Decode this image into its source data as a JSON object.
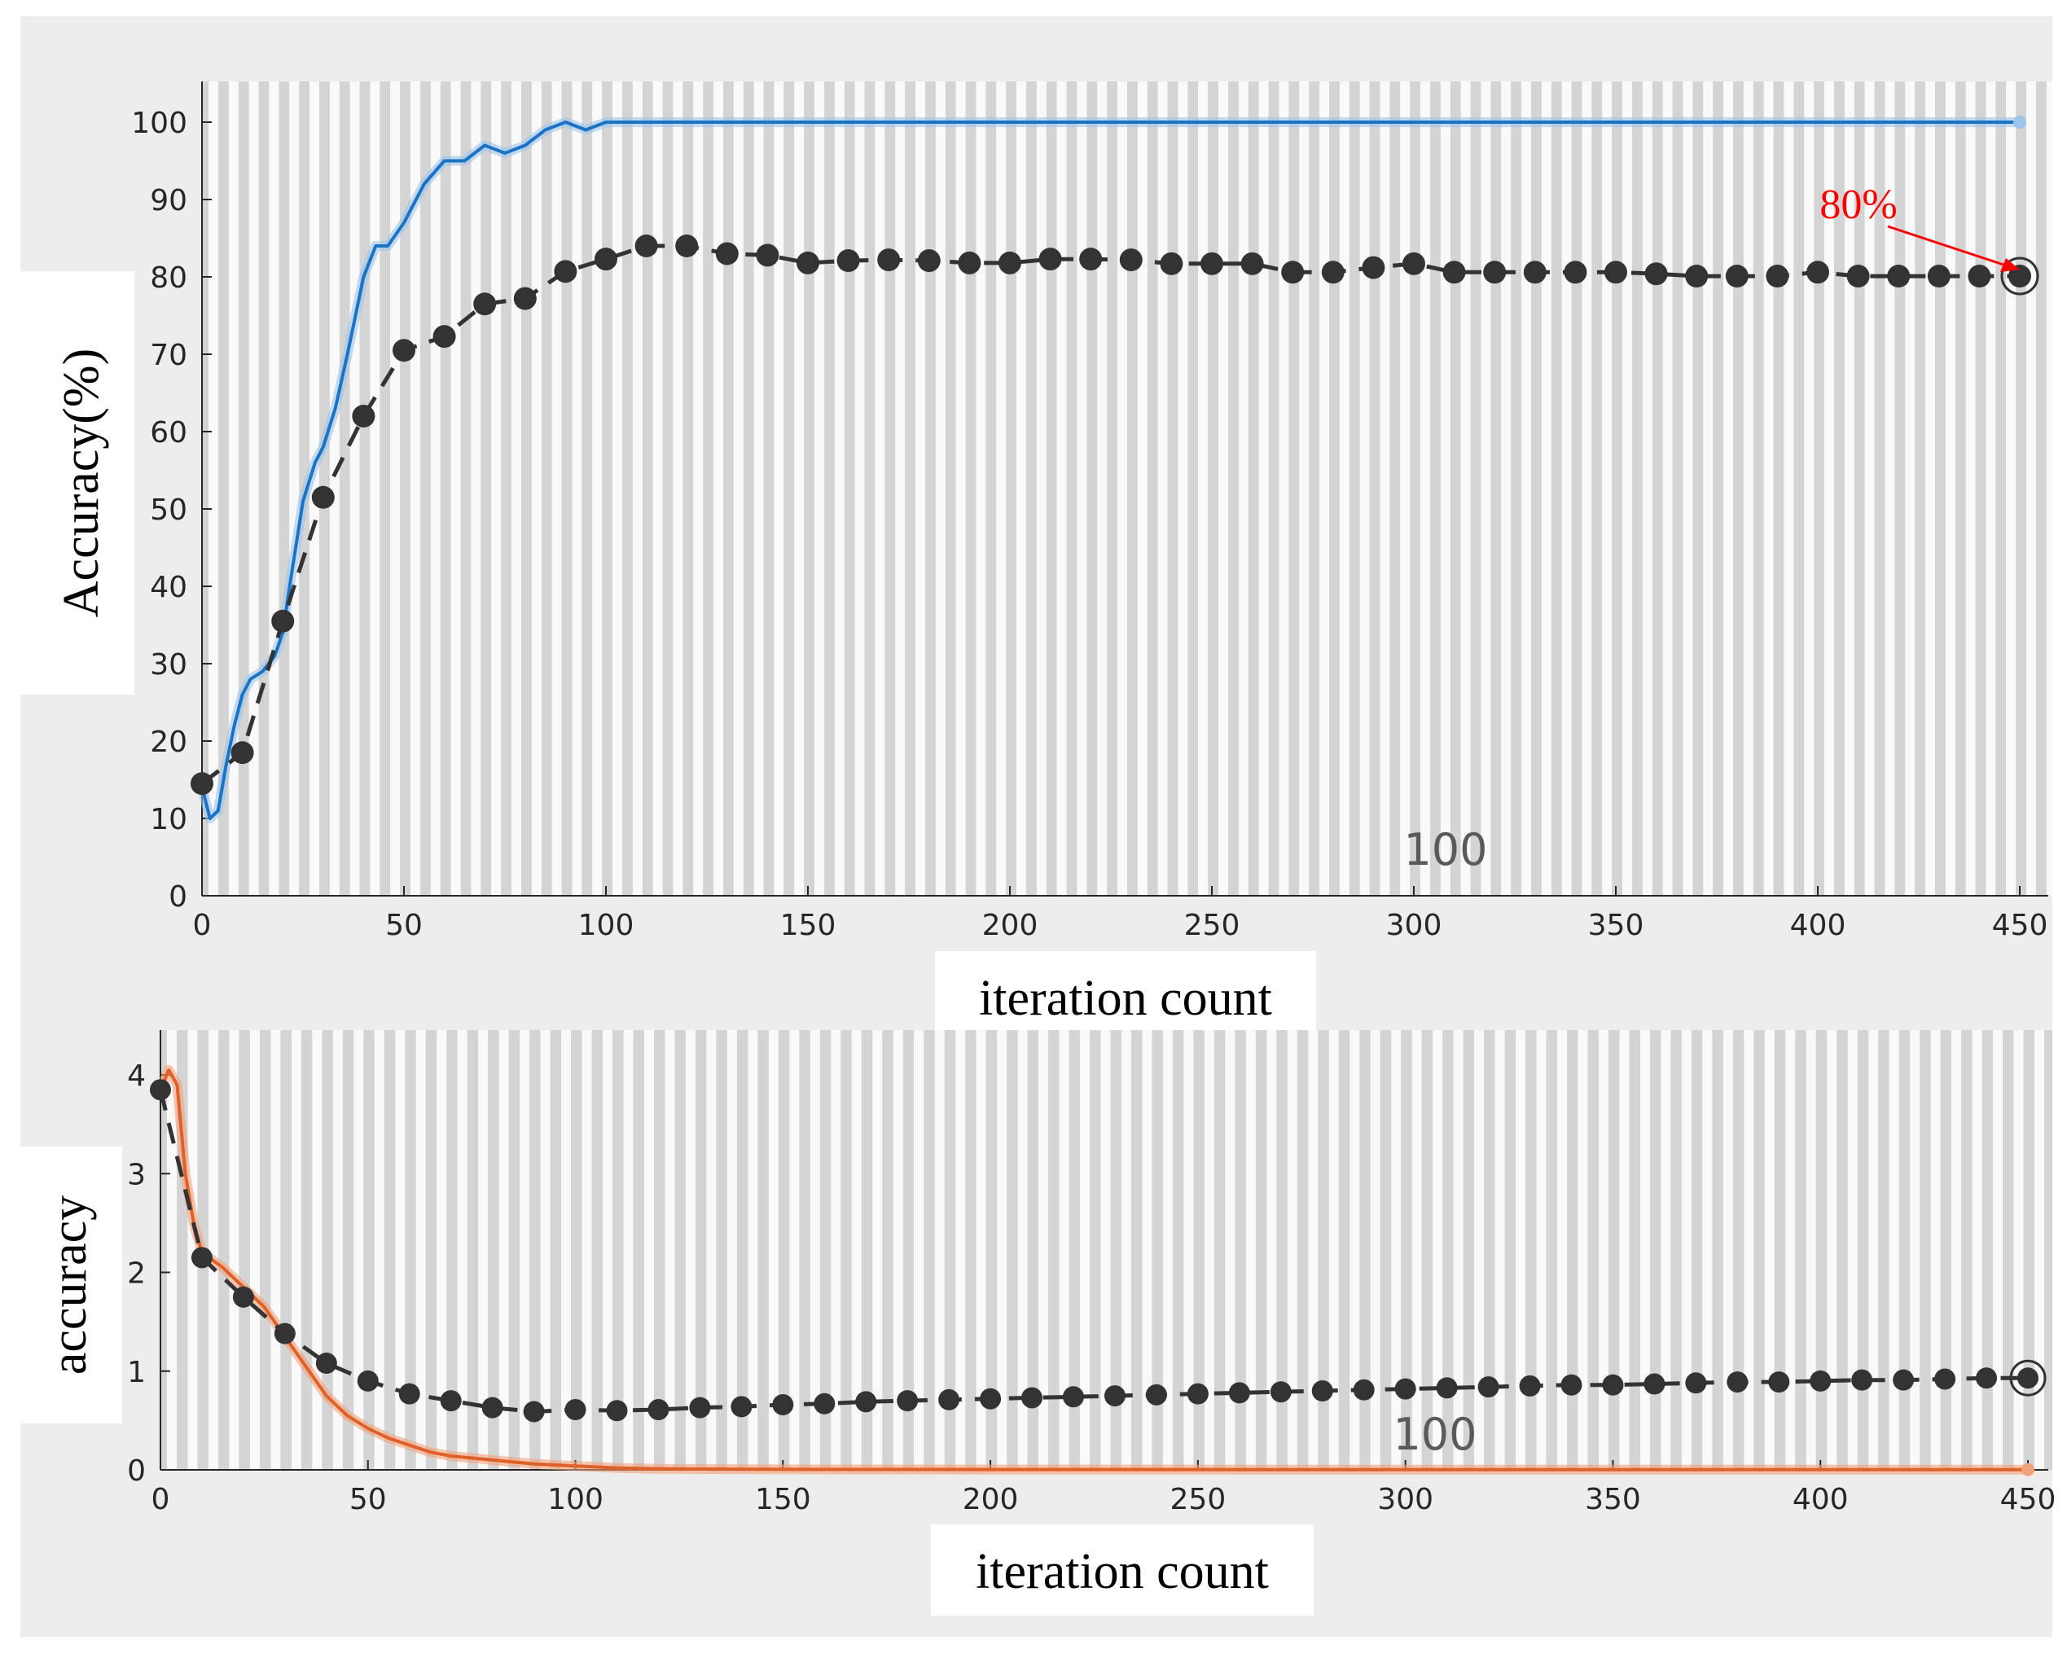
{
  "colors": {
    "background": "#ededed",
    "plot_bg": "#d4d4d4",
    "stripe": "#ffffff",
    "training_accuracy": "#1a73c4",
    "training_accuracy_raw": "#9cc5ea",
    "training_loss": "#e0602a",
    "training_loss_raw": "#f0a07a",
    "validation": "#333333",
    "annotation": "#ff0000"
  },
  "chart_data": [
    {
      "type": "line",
      "ylabel": "Accuracy(%)",
      "xlabel": "iteration count",
      "center_label": "100",
      "xlim": [
        0,
        450
      ],
      "ylim": [
        0,
        105
      ],
      "xticks": [
        0,
        50,
        100,
        150,
        200,
        250,
        300,
        350,
        400,
        450
      ],
      "yticks": [
        0,
        10,
        20,
        30,
        40,
        50,
        60,
        70,
        80,
        90,
        100
      ],
      "annotation": {
        "text": "80%",
        "x": 450,
        "y": 80
      },
      "series": [
        {
          "role": "training",
          "x": [
            0,
            2,
            4,
            6,
            8,
            10,
            12,
            15,
            18,
            20,
            22,
            25,
            28,
            30,
            33,
            36,
            40,
            43,
            46,
            50,
            55,
            60,
            65,
            70,
            75,
            80,
            85,
            90,
            95,
            100,
            105,
            110,
            130,
            200,
            300,
            400,
            450
          ],
          "y": [
            14,
            10,
            11,
            17,
            22,
            26,
            28,
            29,
            31,
            34,
            41,
            51,
            56,
            58,
            63,
            70,
            80,
            84,
            84,
            87,
            92,
            95,
            95,
            97,
            96,
            97,
            99,
            100,
            99,
            100,
            100,
            100,
            100,
            100,
            100,
            100,
            100
          ]
        },
        {
          "role": "validation",
          "x": [
            0,
            10,
            20,
            30,
            40,
            50,
            60,
            70,
            80,
            90,
            100,
            110,
            120,
            130,
            140,
            150,
            160,
            170,
            180,
            190,
            200,
            210,
            220,
            230,
            240,
            250,
            260,
            270,
            280,
            290,
            300,
            310,
            320,
            330,
            340,
            350,
            360,
            370,
            380,
            390,
            400,
            410,
            420,
            430,
            440,
            450
          ],
          "y": [
            14.5,
            18.5,
            35.5,
            51.5,
            62,
            70.5,
            72.3,
            76.5,
            77.2,
            80.7,
            82.3,
            84,
            84,
            83,
            82.8,
            81.8,
            82.1,
            82.2,
            82.1,
            81.8,
            81.8,
            82.3,
            82.3,
            82.2,
            81.7,
            81.7,
            81.7,
            80.6,
            80.6,
            81.2,
            81.7,
            80.6,
            80.6,
            80.6,
            80.6,
            80.6,
            80.4,
            80.1,
            80.1,
            80.1,
            80.6,
            80.1,
            80.1,
            80.1,
            80.1,
            80.1
          ]
        }
      ]
    },
    {
      "type": "line",
      "ylabel": "accuracy",
      "xlabel": "iteration count",
      "center_label": "100",
      "xlim": [
        0,
        450
      ],
      "ylim": [
        0,
        4.3
      ],
      "xticks": [
        0,
        50,
        100,
        150,
        200,
        250,
        300,
        350,
        400,
        450
      ],
      "yticks": [
        0,
        1,
        2,
        3,
        4
      ],
      "series": [
        {
          "role": "training",
          "x": [
            0,
            2,
            4,
            6,
            8,
            10,
            15,
            20,
            25,
            30,
            35,
            40,
            45,
            50,
            55,
            60,
            65,
            70,
            80,
            90,
            100,
            110,
            120,
            150,
            200,
            300,
            400,
            450
          ],
          "y": [
            3.85,
            4.05,
            3.9,
            3.0,
            2.5,
            2.2,
            2.05,
            1.85,
            1.65,
            1.35,
            1.05,
            0.75,
            0.55,
            0.42,
            0.32,
            0.25,
            0.18,
            0.14,
            0.1,
            0.06,
            0.04,
            0.02,
            0.01,
            0.005,
            0.003,
            0.002,
            0.002,
            0.002
          ]
        },
        {
          "role": "validation",
          "x": [
            0,
            10,
            20,
            30,
            40,
            50,
            60,
            70,
            80,
            90,
            100,
            110,
            120,
            130,
            140,
            150,
            160,
            170,
            180,
            190,
            200,
            210,
            220,
            230,
            240,
            250,
            260,
            270,
            280,
            290,
            300,
            310,
            320,
            330,
            340,
            350,
            360,
            370,
            380,
            390,
            400,
            410,
            420,
            430,
            440,
            450
          ],
          "y": [
            3.85,
            2.15,
            1.75,
            1.38,
            1.08,
            0.9,
            0.77,
            0.7,
            0.63,
            0.59,
            0.61,
            0.6,
            0.61,
            0.63,
            0.64,
            0.66,
            0.67,
            0.69,
            0.7,
            0.71,
            0.72,
            0.73,
            0.74,
            0.75,
            0.76,
            0.77,
            0.78,
            0.79,
            0.8,
            0.81,
            0.82,
            0.83,
            0.84,
            0.85,
            0.86,
            0.86,
            0.87,
            0.88,
            0.89,
            0.89,
            0.9,
            0.91,
            0.91,
            0.92,
            0.93,
            0.93
          ]
        }
      ]
    }
  ]
}
